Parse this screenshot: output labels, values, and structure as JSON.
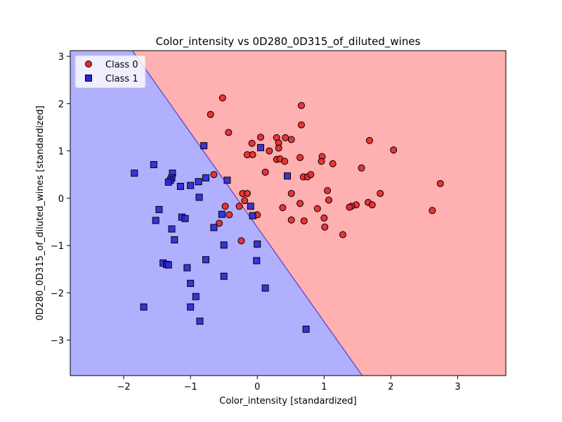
{
  "chart_data": {
    "type": "scatter",
    "title": "Color_intensity vs 0D280_0D315_of_diluted_wines",
    "xlabel": "Color_intensity [standardized]",
    "ylabel": "0D280_0D315_of_diluted_wines [standardized]",
    "xlim": [
      -2.8,
      3.72
    ],
    "ylim": [
      -3.75,
      3.12
    ],
    "xticks": [
      -2,
      -1,
      0,
      1,
      2,
      3
    ],
    "yticks": [
      -3,
      -2,
      -1,
      0,
      1,
      2,
      3
    ],
    "xtick_labels": [
      "−2",
      "−1",
      "0",
      "1",
      "2",
      "3"
    ],
    "ytick_labels": [
      "−3",
      "−2",
      "−1",
      "0",
      "1",
      "2",
      "3"
    ],
    "grid": false,
    "legend_position": "top-left",
    "decision_boundary": {
      "points": [
        [
          -1.87,
          3.12
        ],
        [
          1.57,
          -3.75
        ]
      ],
      "region_class_0_color": "#ffb0b0",
      "region_class_1_color": "#b0b0ff",
      "boundary_color": "#5a3cc8"
    },
    "series": [
      {
        "name": "Class 0",
        "marker": "circle",
        "color": "#e82828",
        "points": [
          [
            -0.52,
            2.12
          ],
          [
            0.66,
            1.96
          ],
          [
            -0.7,
            1.77
          ],
          [
            0.66,
            1.55
          ],
          [
            -0.43,
            1.39
          ],
          [
            0.05,
            1.29
          ],
          [
            0.29,
            1.28
          ],
          [
            0.42,
            1.28
          ],
          [
            0.51,
            1.24
          ],
          [
            1.68,
            1.22
          ],
          [
            -0.08,
            1.16
          ],
          [
            0.32,
            1.17
          ],
          [
            0.32,
            1.06
          ],
          [
            0.18,
            1.0
          ],
          [
            2.04,
            1.02
          ],
          [
            -0.15,
            0.92
          ],
          [
            -0.07,
            0.92
          ],
          [
            0.64,
            0.86
          ],
          [
            0.97,
            0.88
          ],
          [
            0.29,
            0.82
          ],
          [
            0.34,
            0.83
          ],
          [
            0.41,
            0.78
          ],
          [
            0.96,
            0.78
          ],
          [
            1.13,
            0.73
          ],
          [
            1.56,
            0.64
          ],
          [
            0.12,
            0.55
          ],
          [
            -0.65,
            0.5
          ],
          [
            0.69,
            0.45
          ],
          [
            0.75,
            0.45
          ],
          [
            0.8,
            0.5
          ],
          [
            1.05,
            0.16
          ],
          [
            -0.22,
            0.1
          ],
          [
            -0.15,
            0.1
          ],
          [
            0.51,
            0.1
          ],
          [
            1.84,
            0.1
          ],
          [
            2.74,
            0.31
          ],
          [
            -0.19,
            -0.05
          ],
          [
            1.07,
            -0.04
          ],
          [
            0.64,
            -0.11
          ],
          [
            1.66,
            -0.09
          ],
          [
            1.72,
            -0.14
          ],
          [
            1.48,
            -0.14
          ],
          [
            1.41,
            -0.17
          ],
          [
            -0.48,
            -0.17
          ],
          [
            -0.27,
            -0.17
          ],
          [
            1.38,
            -0.19
          ],
          [
            0.38,
            -0.2
          ],
          [
            0.9,
            -0.22
          ],
          [
            2.62,
            -0.26
          ],
          [
            -0.42,
            -0.35
          ],
          [
            0.0,
            -0.35
          ],
          [
            1.0,
            -0.42
          ],
          [
            0.51,
            -0.46
          ],
          [
            0.7,
            -0.48
          ],
          [
            -0.57,
            -0.53
          ],
          [
            1.01,
            -0.61
          ],
          [
            1.28,
            -0.77
          ],
          [
            -0.24,
            -0.9
          ]
        ]
      },
      {
        "name": "Class 1",
        "marker": "square",
        "color": "#2828d8",
        "points": [
          [
            -0.8,
            1.11
          ],
          [
            0.05,
            1.07
          ],
          [
            -1.55,
            0.71
          ],
          [
            -1.84,
            0.53
          ],
          [
            -1.27,
            0.53
          ],
          [
            -0.77,
            0.43
          ],
          [
            -1.28,
            0.43
          ],
          [
            -1.3,
            0.38
          ],
          [
            -0.45,
            0.38
          ],
          [
            -1.33,
            0.34
          ],
          [
            -0.88,
            0.35
          ],
          [
            -1.15,
            0.25
          ],
          [
            -1.0,
            0.27
          ],
          [
            0.45,
            0.47
          ],
          [
            -0.87,
            0.02
          ],
          [
            -1.47,
            -0.24
          ],
          [
            -0.1,
            -0.17
          ],
          [
            -0.53,
            -0.34
          ],
          [
            -0.07,
            -0.37
          ],
          [
            -1.13,
            -0.4
          ],
          [
            -1.08,
            -0.43
          ],
          [
            -1.52,
            -0.47
          ],
          [
            -0.65,
            -0.62
          ],
          [
            -1.28,
            -0.65
          ],
          [
            -1.24,
            -0.88
          ],
          [
            -0.5,
            -0.99
          ],
          [
            0.0,
            -0.97
          ],
          [
            -0.77,
            -1.3
          ],
          [
            -0.01,
            -1.32
          ],
          [
            -1.41,
            -1.37
          ],
          [
            -1.36,
            -1.4
          ],
          [
            -1.33,
            -1.41
          ],
          [
            -1.05,
            -1.47
          ],
          [
            -0.5,
            -1.65
          ],
          [
            -1.0,
            -1.8
          ],
          [
            0.12,
            -1.9
          ],
          [
            -0.92,
            -2.08
          ],
          [
            -1.7,
            -2.3
          ],
          [
            -1.0,
            -2.3
          ],
          [
            -0.86,
            -2.6
          ],
          [
            0.73,
            -2.77
          ]
        ]
      }
    ]
  }
}
